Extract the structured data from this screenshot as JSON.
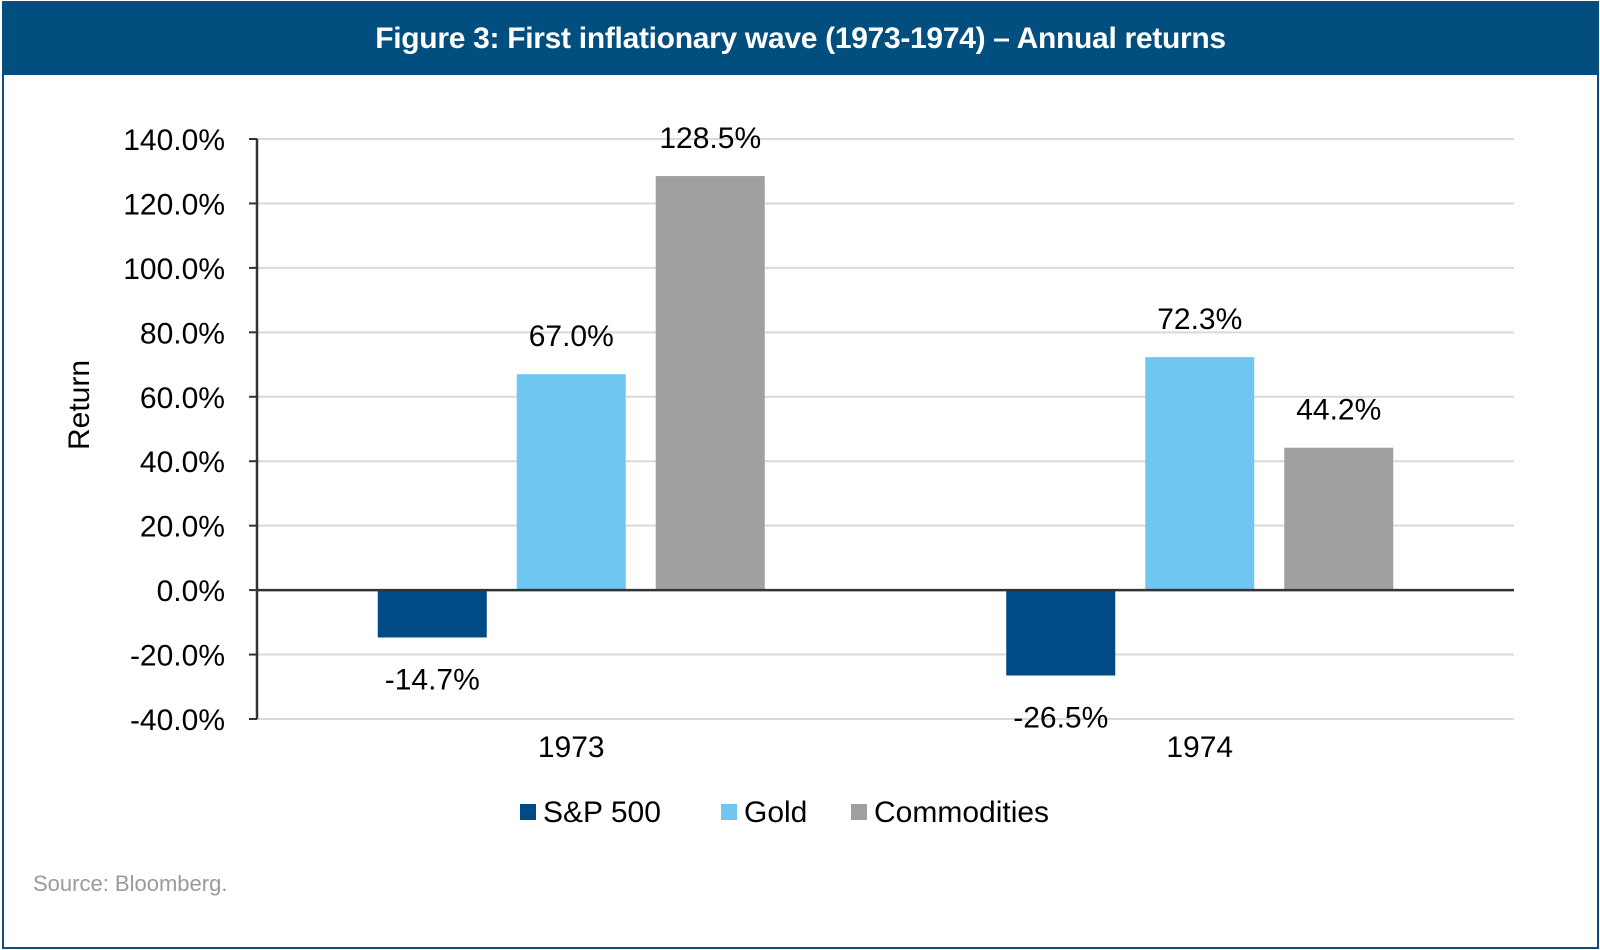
{
  "header": {
    "title": "Figure 3: First inflationary wave (1973-1974) – Annual returns"
  },
  "footer": {
    "source": "Source: Bloomberg."
  },
  "colors": {
    "header_bg": "#024e7f",
    "sp500": "#004b85",
    "gold": "#6ec6f1",
    "commodities": "#a0a0a0",
    "gridline": "#d9d9d9",
    "axis": "#333333"
  },
  "chart_data": {
    "type": "bar",
    "title": "Figure 3: First inflationary wave (1973-1974) – Annual returns",
    "xlabel": "",
    "ylabel": "Return",
    "categories": [
      "1973",
      "1974"
    ],
    "series": [
      {
        "name": "S&P 500",
        "color": "#004b85",
        "values": [
          -14.7,
          -26.5
        ],
        "labels": [
          "-14.7%",
          "-26.5%"
        ]
      },
      {
        "name": "Gold",
        "color": "#6ec6f1",
        "values": [
          67.0,
          72.3
        ],
        "labels": [
          "67.0%",
          "72.3%"
        ]
      },
      {
        "name": "Commodities",
        "color": "#a0a0a0",
        "values": [
          128.5,
          44.2
        ],
        "labels": [
          "128.5%",
          "44.2%"
        ]
      }
    ],
    "ylim": [
      -40,
      140
    ],
    "yticks": [
      140,
      120,
      100,
      80,
      60,
      40,
      20,
      0,
      -20,
      -40
    ],
    "ytick_labels": [
      "140.0%",
      "120.0%",
      "100.0%",
      "80.0%",
      "60.0%",
      "40.0%",
      "20.0%",
      "0.0%",
      "-20.0%",
      "-40.0%"
    ],
    "grid": true,
    "legend_position": "bottom-center",
    "source": "Source: Bloomberg."
  }
}
